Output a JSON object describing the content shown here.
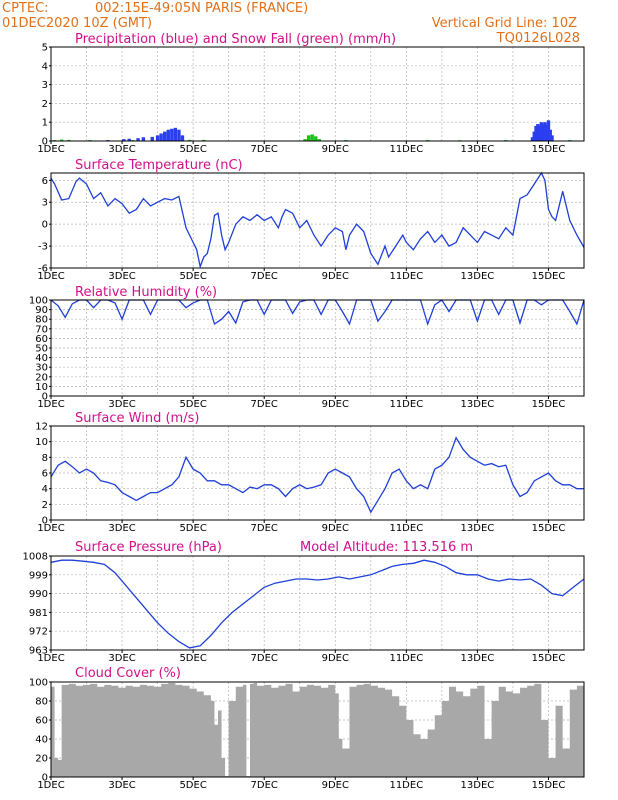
{
  "header": {
    "org": "CPTEC:",
    "location": "002:15E-49:05N   PARIS (FRANCE)",
    "datetime": "01DEC2020 10Z (GMT)",
    "grid_note": "Vertical Grid Line: 10Z",
    "code": "TQ0126L028",
    "model_altitude": "Model Altitude: 113.516 m"
  },
  "colors": {
    "header": "#e0701a",
    "title": "#d0108a",
    "line": "#1f3fd8",
    "rain": "#2b3ff0",
    "snow": "#19c219",
    "cloud": "#a8a8a8"
  },
  "chart_data": [
    {
      "id": "precipitation",
      "type": "bar",
      "title": "Precipitation (blue) and Snow Fall (green) (mm/h)",
      "x_ticks": [
        "1DEC",
        "3DEC",
        "5DEC",
        "7DEC",
        "9DEC",
        "11DEC",
        "13DEC",
        "15DEC"
      ],
      "x_range": [
        0,
        15
      ],
      "ylim": [
        0,
        5
      ],
      "y_ticks": [
        "0",
        "1",
        "2",
        "3",
        "4",
        "5"
      ],
      "series": [
        {
          "name": "Precipitation",
          "color": "#2b3ff0",
          "events": [
            [
              1.6,
              0.05
            ],
            [
              2.05,
              0.1
            ],
            [
              2.2,
              0.12
            ],
            [
              2.45,
              0.15
            ],
            [
              2.6,
              0.2
            ],
            [
              2.85,
              0.22
            ],
            [
              3.0,
              0.3
            ],
            [
              3.1,
              0.4
            ],
            [
              3.2,
              0.5
            ],
            [
              3.3,
              0.6
            ],
            [
              3.4,
              0.65
            ],
            [
              3.5,
              0.7
            ],
            [
              3.6,
              0.6
            ],
            [
              3.7,
              0.3
            ],
            [
              7.4,
              0.05
            ],
            [
              13.55,
              0.2
            ],
            [
              13.6,
              0.5
            ],
            [
              13.65,
              0.8
            ],
            [
              13.7,
              0.9
            ],
            [
              13.75,
              0.8
            ],
            [
              13.8,
              1.0
            ],
            [
              13.85,
              0.9
            ],
            [
              13.9,
              1.0
            ],
            [
              13.95,
              0.85
            ],
            [
              14.0,
              1.1
            ],
            [
              14.05,
              0.6
            ],
            [
              14.1,
              0.3
            ]
          ]
        },
        {
          "name": "Snow Fall",
          "color": "#19c219",
          "events": [
            [
              0.1,
              0.05
            ],
            [
              0.3,
              0.08
            ],
            [
              0.5,
              0.06
            ],
            [
              1.1,
              0.05
            ],
            [
              2.3,
              0.05
            ],
            [
              3.9,
              0.06
            ],
            [
              4.3,
              0.06
            ],
            [
              7.15,
              0.1
            ],
            [
              7.25,
              0.3
            ],
            [
              7.35,
              0.35
            ],
            [
              7.45,
              0.25
            ],
            [
              7.55,
              0.1
            ],
            [
              8.3,
              0.05
            ],
            [
              10.6,
              0.05
            ],
            [
              11.5,
              0.04
            ],
            [
              12.8,
              0.05
            ],
            [
              14.6,
              0.05
            ]
          ]
        }
      ]
    },
    {
      "id": "temperature",
      "type": "line",
      "title": "Surface Temperature (nC)",
      "x_ticks": [
        "1DEC",
        "3DEC",
        "5DEC",
        "7DEC",
        "9DEC",
        "11DEC",
        "13DEC",
        "15DEC"
      ],
      "x_range": [
        0,
        15
      ],
      "ylim": [
        -6,
        7
      ],
      "y_ticks": [
        "-6",
        "-3",
        "0",
        "3",
        "6"
      ],
      "x": [
        0,
        0.1,
        0.3,
        0.5,
        0.7,
        0.8,
        1.0,
        1.2,
        1.4,
        1.6,
        1.8,
        2.0,
        2.2,
        2.4,
        2.6,
        2.8,
        3.0,
        3.2,
        3.4,
        3.6,
        3.8,
        3.9,
        4.1,
        4.2,
        4.3,
        4.4,
        4.5,
        4.6,
        4.7,
        4.8,
        4.9,
        5.0,
        5.2,
        5.4,
        5.6,
        5.8,
        6.0,
        6.2,
        6.4,
        6.5,
        6.6,
        6.8,
        7.0,
        7.2,
        7.4,
        7.6,
        7.8,
        8.0,
        8.2,
        8.3,
        8.4,
        8.6,
        8.8,
        9.0,
        9.2,
        9.4,
        9.5,
        9.7,
        9.9,
        10.0,
        10.2,
        10.4,
        10.6,
        10.8,
        11.0,
        11.2,
        11.4,
        11.6,
        11.8,
        12.0,
        12.2,
        12.4,
        12.6,
        12.8,
        13.0,
        13.2,
        13.4,
        13.6,
        13.8,
        13.9,
        14.0,
        14.1,
        14.2,
        14.4,
        14.6,
        14.8,
        15.0
      ],
      "values": [
        6.3,
        5.5,
        3.3,
        3.5,
        5.8,
        6.3,
        5.5,
        3.5,
        4.3,
        2.5,
        3.5,
        2.8,
        1.5,
        2.0,
        3.5,
        2.5,
        3.0,
        3.5,
        3.3,
        3.8,
        -0.5,
        -1.5,
        -3.5,
        -5.8,
        -4.5,
        -4.0,
        -2.0,
        1.2,
        1.5,
        -1.5,
        -3.5,
        -2.5,
        0.0,
        1.0,
        0.5,
        1.3,
        0.5,
        1.0,
        -0.5,
        1.0,
        2.0,
        1.5,
        -0.5,
        0.5,
        -1.5,
        -3.0,
        -1.5,
        -0.5,
        -1.0,
        -3.5,
        -1.5,
        0.0,
        -1.0,
        -4.0,
        -5.5,
        -3.0,
        -4.5,
        -3.0,
        -1.5,
        -2.5,
        -3.5,
        -2.0,
        -1.0,
        -2.5,
        -1.5,
        -3.0,
        -2.5,
        -0.5,
        -1.5,
        -2.5,
        -1.0,
        -1.5,
        -2.0,
        -0.5,
        -1.5,
        3.5,
        4.0,
        5.5,
        7.0,
        6.0,
        2.0,
        1.0,
        0.5,
        4.5,
        0.5,
        -1.5,
        -3.2
      ]
    },
    {
      "id": "humidity",
      "type": "line",
      "title": "Relative Humidity (%)",
      "x_ticks": [
        "1DEC",
        "3DEC",
        "5DEC",
        "7DEC",
        "9DEC",
        "11DEC",
        "13DEC",
        "15DEC"
      ],
      "x_range": [
        0,
        15
      ],
      "ylim": [
        0,
        100
      ],
      "y_ticks": [
        "0",
        "10",
        "20",
        "30",
        "40",
        "50",
        "60",
        "70",
        "80",
        "90",
        "100"
      ],
      "x": [
        0,
        0.2,
        0.4,
        0.6,
        0.8,
        1.0,
        1.2,
        1.4,
        1.6,
        1.8,
        2.0,
        2.2,
        2.4,
        2.6,
        2.8,
        3.0,
        3.2,
        3.4,
        3.6,
        3.8,
        4.0,
        4.2,
        4.4,
        4.6,
        4.8,
        5.0,
        5.2,
        5.4,
        5.6,
        5.8,
        6.0,
        6.2,
        6.4,
        6.6,
        6.8,
        7.0,
        7.2,
        7.4,
        7.6,
        7.8,
        8.0,
        8.2,
        8.4,
        8.6,
        8.8,
        9.0,
        9.2,
        9.4,
        9.6,
        9.8,
        10.0,
        10.2,
        10.4,
        10.6,
        10.8,
        11.0,
        11.2,
        11.4,
        11.6,
        11.8,
        12.0,
        12.2,
        12.4,
        12.6,
        12.8,
        13.0,
        13.2,
        13.4,
        13.6,
        13.8,
        14.0,
        14.2,
        14.4,
        14.6,
        14.8,
        15.0
      ],
      "values": [
        100,
        94,
        82,
        96,
        100,
        100,
        92,
        100,
        100,
        97,
        80,
        100,
        100,
        100,
        85,
        100,
        100,
        100,
        100,
        92,
        97,
        100,
        100,
        75,
        80,
        88,
        76,
        98,
        100,
        100,
        85,
        100,
        100,
        100,
        86,
        98,
        100,
        100,
        85,
        100,
        100,
        88,
        75,
        100,
        100,
        100,
        78,
        88,
        100,
        100,
        100,
        100,
        100,
        75,
        95,
        100,
        88,
        100,
        100,
        100,
        78,
        100,
        100,
        85,
        100,
        100,
        76,
        100,
        100,
        95,
        100,
        100,
        100,
        88,
        75,
        100
      ]
    },
    {
      "id": "wind",
      "type": "line",
      "title": "Surface Wind (m/s)",
      "x_ticks": [
        "1DEC",
        "3DEC",
        "5DEC",
        "7DEC",
        "9DEC",
        "11DEC",
        "13DEC",
        "15DEC"
      ],
      "x_range": [
        0,
        15
      ],
      "ylim": [
        0,
        12
      ],
      "y_ticks": [
        "0",
        "2",
        "4",
        "6",
        "8",
        "10",
        "12"
      ],
      "x": [
        0,
        0.2,
        0.4,
        0.6,
        0.8,
        1.0,
        1.2,
        1.4,
        1.6,
        1.8,
        2.0,
        2.2,
        2.4,
        2.6,
        2.8,
        3.0,
        3.2,
        3.4,
        3.6,
        3.8,
        4.0,
        4.2,
        4.4,
        4.6,
        4.8,
        5.0,
        5.2,
        5.4,
        5.6,
        5.8,
        6.0,
        6.2,
        6.4,
        6.6,
        6.8,
        7.0,
        7.2,
        7.4,
        7.6,
        7.8,
        8.0,
        8.2,
        8.4,
        8.6,
        8.8,
        9.0,
        9.2,
        9.4,
        9.6,
        9.8,
        10.0,
        10.2,
        10.4,
        10.6,
        10.8,
        11.0,
        11.2,
        11.4,
        11.6,
        11.8,
        12.0,
        12.2,
        12.4,
        12.6,
        12.8,
        13.0,
        13.2,
        13.4,
        13.6,
        13.8,
        14.0,
        14.2,
        14.4,
        14.6,
        14.8,
        15.0
      ],
      "values": [
        5.5,
        7.0,
        7.5,
        6.8,
        6.0,
        6.5,
        6.0,
        5.0,
        4.8,
        4.5,
        3.5,
        3.0,
        2.5,
        3.0,
        3.5,
        3.5,
        4.0,
        4.5,
        5.5,
        8.0,
        6.5,
        6.0,
        5.0,
        5.0,
        4.5,
        4.5,
        4.0,
        3.5,
        4.2,
        4.0,
        4.5,
        4.5,
        4.0,
        3.0,
        4.0,
        4.5,
        4.0,
        4.2,
        4.5,
        6.0,
        6.5,
        6.0,
        5.5,
        4.0,
        3.0,
        1.0,
        2.5,
        4.0,
        6.0,
        6.5,
        5.0,
        4.0,
        4.5,
        4.0,
        6.5,
        7.0,
        8.0,
        10.5,
        9.0,
        8.0,
        7.5,
        7.0,
        7.2,
        6.8,
        7.0,
        4.5,
        3.0,
        3.5,
        5.0,
        5.5,
        6.0,
        5.0,
        4.5,
        4.5,
        4.0,
        4.0
      ]
    },
    {
      "id": "pressure",
      "type": "line",
      "title": "Surface Pressure (hPa)",
      "x_ticks": [
        "1DEC",
        "3DEC",
        "5DEC",
        "7DEC",
        "9DEC",
        "11DEC",
        "13DEC",
        "15DEC"
      ],
      "x_range": [
        0,
        15
      ],
      "ylim": [
        963,
        1008
      ],
      "y_ticks": [
        "963",
        "972",
        "981",
        "990",
        "999",
        "1008"
      ],
      "x": [
        0,
        0.3,
        0.6,
        0.9,
        1.2,
        1.5,
        1.8,
        2.1,
        2.4,
        2.7,
        3.0,
        3.3,
        3.6,
        3.9,
        4.2,
        4.5,
        4.8,
        5.1,
        5.4,
        5.7,
        6.0,
        6.3,
        6.6,
        6.9,
        7.2,
        7.5,
        7.8,
        8.1,
        8.4,
        8.7,
        9.0,
        9.3,
        9.6,
        9.9,
        10.2,
        10.5,
        10.8,
        11.1,
        11.4,
        11.7,
        12.0,
        12.3,
        12.6,
        12.9,
        13.2,
        13.5,
        13.8,
        14.1,
        14.4,
        14.7,
        15.0
      ],
      "values": [
        1005,
        1006,
        1006,
        1005.5,
        1005,
        1004,
        1000,
        994,
        988,
        982,
        976,
        971,
        967,
        964,
        965,
        970,
        976,
        981,
        985,
        989,
        993,
        995,
        996,
        997,
        997,
        996.5,
        997,
        998,
        997,
        998,
        999,
        1001,
        1003,
        1004,
        1004.5,
        1006,
        1005,
        1003,
        1000,
        999,
        999,
        997,
        996,
        997,
        996.5,
        997,
        994,
        990,
        989,
        993,
        997
      ]
    },
    {
      "id": "cloud",
      "type": "area",
      "title": "Cloud Cover (%)",
      "x_ticks": [
        "1DEC",
        "3DEC",
        "5DEC",
        "7DEC",
        "9DEC",
        "11DEC",
        "13DEC",
        "15DEC"
      ],
      "x_range": [
        0,
        15
      ],
      "ylim": [
        0,
        100
      ],
      "y_ticks": [
        "0",
        "20",
        "40",
        "60",
        "80",
        "100"
      ],
      "x": [
        0,
        0.1,
        0.2,
        0.3,
        0.5,
        0.7,
        0.9,
        1.1,
        1.3,
        1.5,
        1.7,
        1.9,
        2.1,
        2.3,
        2.5,
        2.7,
        2.9,
        3.1,
        3.3,
        3.5,
        3.7,
        3.9,
        4.1,
        4.3,
        4.5,
        4.6,
        4.7,
        4.8,
        4.9,
        5.0,
        5.2,
        5.4,
        5.5,
        5.6,
        5.7,
        5.8,
        6.0,
        6.2,
        6.4,
        6.6,
        6.8,
        7.0,
        7.2,
        7.4,
        7.6,
        7.8,
        8.0,
        8.1,
        8.2,
        8.4,
        8.6,
        8.8,
        9.0,
        9.2,
        9.4,
        9.6,
        9.8,
        10.0,
        10.2,
        10.4,
        10.6,
        10.8,
        11.0,
        11.2,
        11.4,
        11.6,
        11.8,
        12.0,
        12.2,
        12.4,
        12.6,
        12.8,
        13.0,
        13.2,
        13.4,
        13.6,
        13.8,
        14.0,
        14.2,
        14.4,
        14.6,
        14.8,
        15.0
      ],
      "values": [
        95,
        20,
        18,
        97,
        98,
        96,
        97,
        98,
        95,
        97,
        96,
        94,
        96,
        95,
        97,
        96,
        95,
        98,
        99,
        97,
        96,
        93,
        90,
        86,
        80,
        55,
        70,
        20,
        1,
        80,
        95,
        97,
        1,
        98,
        99,
        96,
        97,
        94,
        96,
        98,
        90,
        95,
        97,
        96,
        94,
        97,
        88,
        40,
        30,
        95,
        97,
        98,
        96,
        94,
        92,
        85,
        75,
        60,
        45,
        40,
        50,
        65,
        80,
        95,
        90,
        85,
        93,
        96,
        40,
        80,
        95,
        90,
        88,
        94,
        96,
        98,
        60,
        20,
        75,
        30,
        92,
        96,
        98
      ]
    }
  ]
}
